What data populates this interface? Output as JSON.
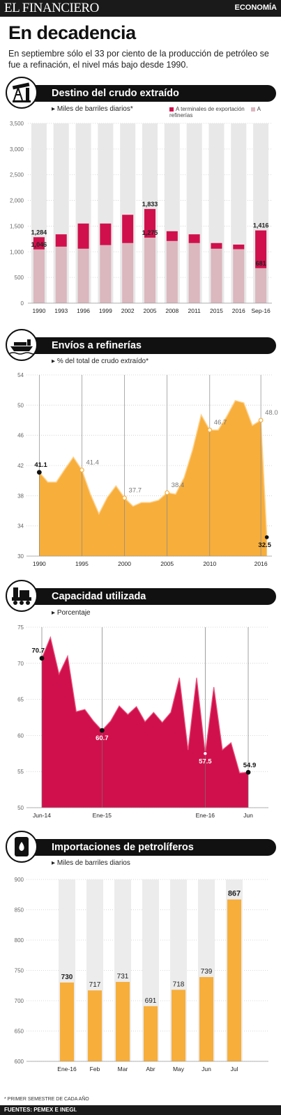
{
  "header": {
    "logo": "EL FINANCIERO",
    "section": "ECONOMÍA"
  },
  "headline": "En decadencia",
  "intro": "En septiembre sólo el 33 por ciento de la producción de petróleo se fue a refinación, el nivel más bajo desde 1990.",
  "footnote": "* PRIMER SEMESTRE DE CADA AÑO",
  "sources": "FUENTES: PEMEX E INEGI.",
  "colors": {
    "crimson": "#d0104c",
    "pink": "#dbb7be",
    "orange": "#f7ae3b",
    "dark": "#111111"
  },
  "chart_data": [
    {
      "type": "bar",
      "stacked": true,
      "title": "Destino del crudo extraído",
      "unit_label": "Miles de barriles diarios*",
      "categories": [
        "1990",
        "1993",
        "1996",
        "1999",
        "2002",
        "2005",
        "2008",
        "2011",
        "2015",
        "2016",
        "Sep-16"
      ],
      "series": [
        {
          "name": "A refinerías",
          "values": [
            1046,
            1100,
            1060,
            1130,
            1170,
            1275,
            1210,
            1170,
            1060,
            1050,
            681
          ]
        },
        {
          "name": "A terminales de exportación",
          "values": [
            1284,
            1340,
            1550,
            1550,
            1720,
            1833,
            1400,
            1340,
            1170,
            1140,
            1416
          ]
        }
      ],
      "labels": [
        {
          "index": 0,
          "values": [
            "1,046",
            "1,284"
          ]
        },
        {
          "index": 5,
          "values": [
            "1,275",
            "1,833"
          ]
        },
        {
          "index": 10,
          "values": [
            "681",
            "1,416"
          ]
        }
      ],
      "ylim": [
        0,
        3500
      ],
      "yticks": [
        "0",
        "500",
        "1,000",
        "1,500",
        "2,000",
        "2,500",
        "3,000",
        "3,500"
      ],
      "grid": true
    },
    {
      "type": "area",
      "title": "Envíos a refinerías",
      "unit_label": "% del total de crudo extraído*",
      "x": [
        1990,
        1991,
        1992,
        1993,
        1994,
        1995,
        1996,
        1997,
        1998,
        1999,
        2000,
        2001,
        2002,
        2003,
        2004,
        2005,
        2006,
        2007,
        2008,
        2009,
        2010,
        2011,
        2012,
        2013,
        2014,
        2015,
        2016
      ],
      "y": [
        41.1,
        39.8,
        39.8,
        41.5,
        43.1,
        41.4,
        38.2,
        35.6,
        37.8,
        39.3,
        37.7,
        36.6,
        37.1,
        37.1,
        37.4,
        38.4,
        38.2,
        40.4,
        44.1,
        48.7,
        46.7,
        46.7,
        48.5,
        50.6,
        50.3,
        47.3,
        48.0
      ],
      "final_point": {
        "x": 2016.7,
        "y": 32.5,
        "label": "32.5"
      },
      "labels": [
        {
          "index": 0,
          "value": "41.1"
        },
        {
          "index": 5,
          "value": "41.4"
        },
        {
          "index": 10,
          "value": "37.7"
        },
        {
          "index": 15,
          "value": "38.4"
        },
        {
          "index": 20,
          "value": "46.7"
        },
        {
          "index": 26,
          "value": "48.0"
        }
      ],
      "xticks": [
        "1990",
        "1995",
        "2000",
        "2005",
        "2010",
        "2016"
      ],
      "xtick_values": [
        1990,
        1995,
        2000,
        2005,
        2010,
        2016
      ],
      "ylim": [
        30,
        54
      ],
      "yticks": [
        "30",
        "34",
        "38",
        "42",
        "46",
        "50",
        "54"
      ]
    },
    {
      "type": "area",
      "title": "Capacidad utilizada",
      "unit_label": "Porcentaje",
      "x": [
        "Jun-14",
        "Jul-14",
        "Ago-14",
        "Sep-14",
        "Oct-14",
        "Nov-14",
        "Dic-14",
        "Ene-15",
        "Feb-15",
        "Mar-15",
        "Abr-15",
        "May-15",
        "Jun-15",
        "Jul-15",
        "Ago-15",
        "Sep-15",
        "Oct-15",
        "Nov-15",
        "Dic-15",
        "Ene-16",
        "Feb-16",
        "Mar-16",
        "Abr-16",
        "May-16",
        "Jun-16"
      ],
      "y": [
        70.7,
        73.6,
        68.5,
        71,
        63.3,
        63.6,
        62,
        60.7,
        62,
        64.1,
        62.9,
        64,
        61.9,
        63.2,
        61.8,
        63.2,
        68,
        58,
        68,
        57.5,
        66.7,
        58,
        59,
        54.8,
        54.9
      ],
      "labels": [
        {
          "index": 0,
          "value": "70.7"
        },
        {
          "index": 7,
          "value": "60.7"
        },
        {
          "index": 19,
          "value": "57.5"
        },
        {
          "index": 24,
          "value": "54.9"
        }
      ],
      "xticks": [
        "Jun-14",
        "Ene-15",
        "Ene-16",
        "Jun"
      ],
      "xtick_index": [
        0,
        7,
        19,
        24
      ],
      "ylim": [
        50,
        75
      ],
      "yticks": [
        "50",
        "55",
        "60",
        "65",
        "70",
        "75"
      ]
    },
    {
      "type": "bar",
      "title": "Importaciones de petrolíferos",
      "unit_label": "Miles de barriles diarios",
      "categories": [
        "Ene-16",
        "Feb",
        "Mar",
        "Abr",
        "May",
        "Jun",
        "Jul"
      ],
      "values": [
        730,
        717,
        731,
        691,
        718,
        739,
        867
      ],
      "value_labels": [
        "730",
        "717",
        "731",
        "691",
        "718",
        "739",
        "867"
      ],
      "ylim": [
        600,
        900
      ],
      "yticks": [
        "600",
        "650",
        "700",
        "750",
        "800",
        "850",
        "900"
      ]
    }
  ]
}
